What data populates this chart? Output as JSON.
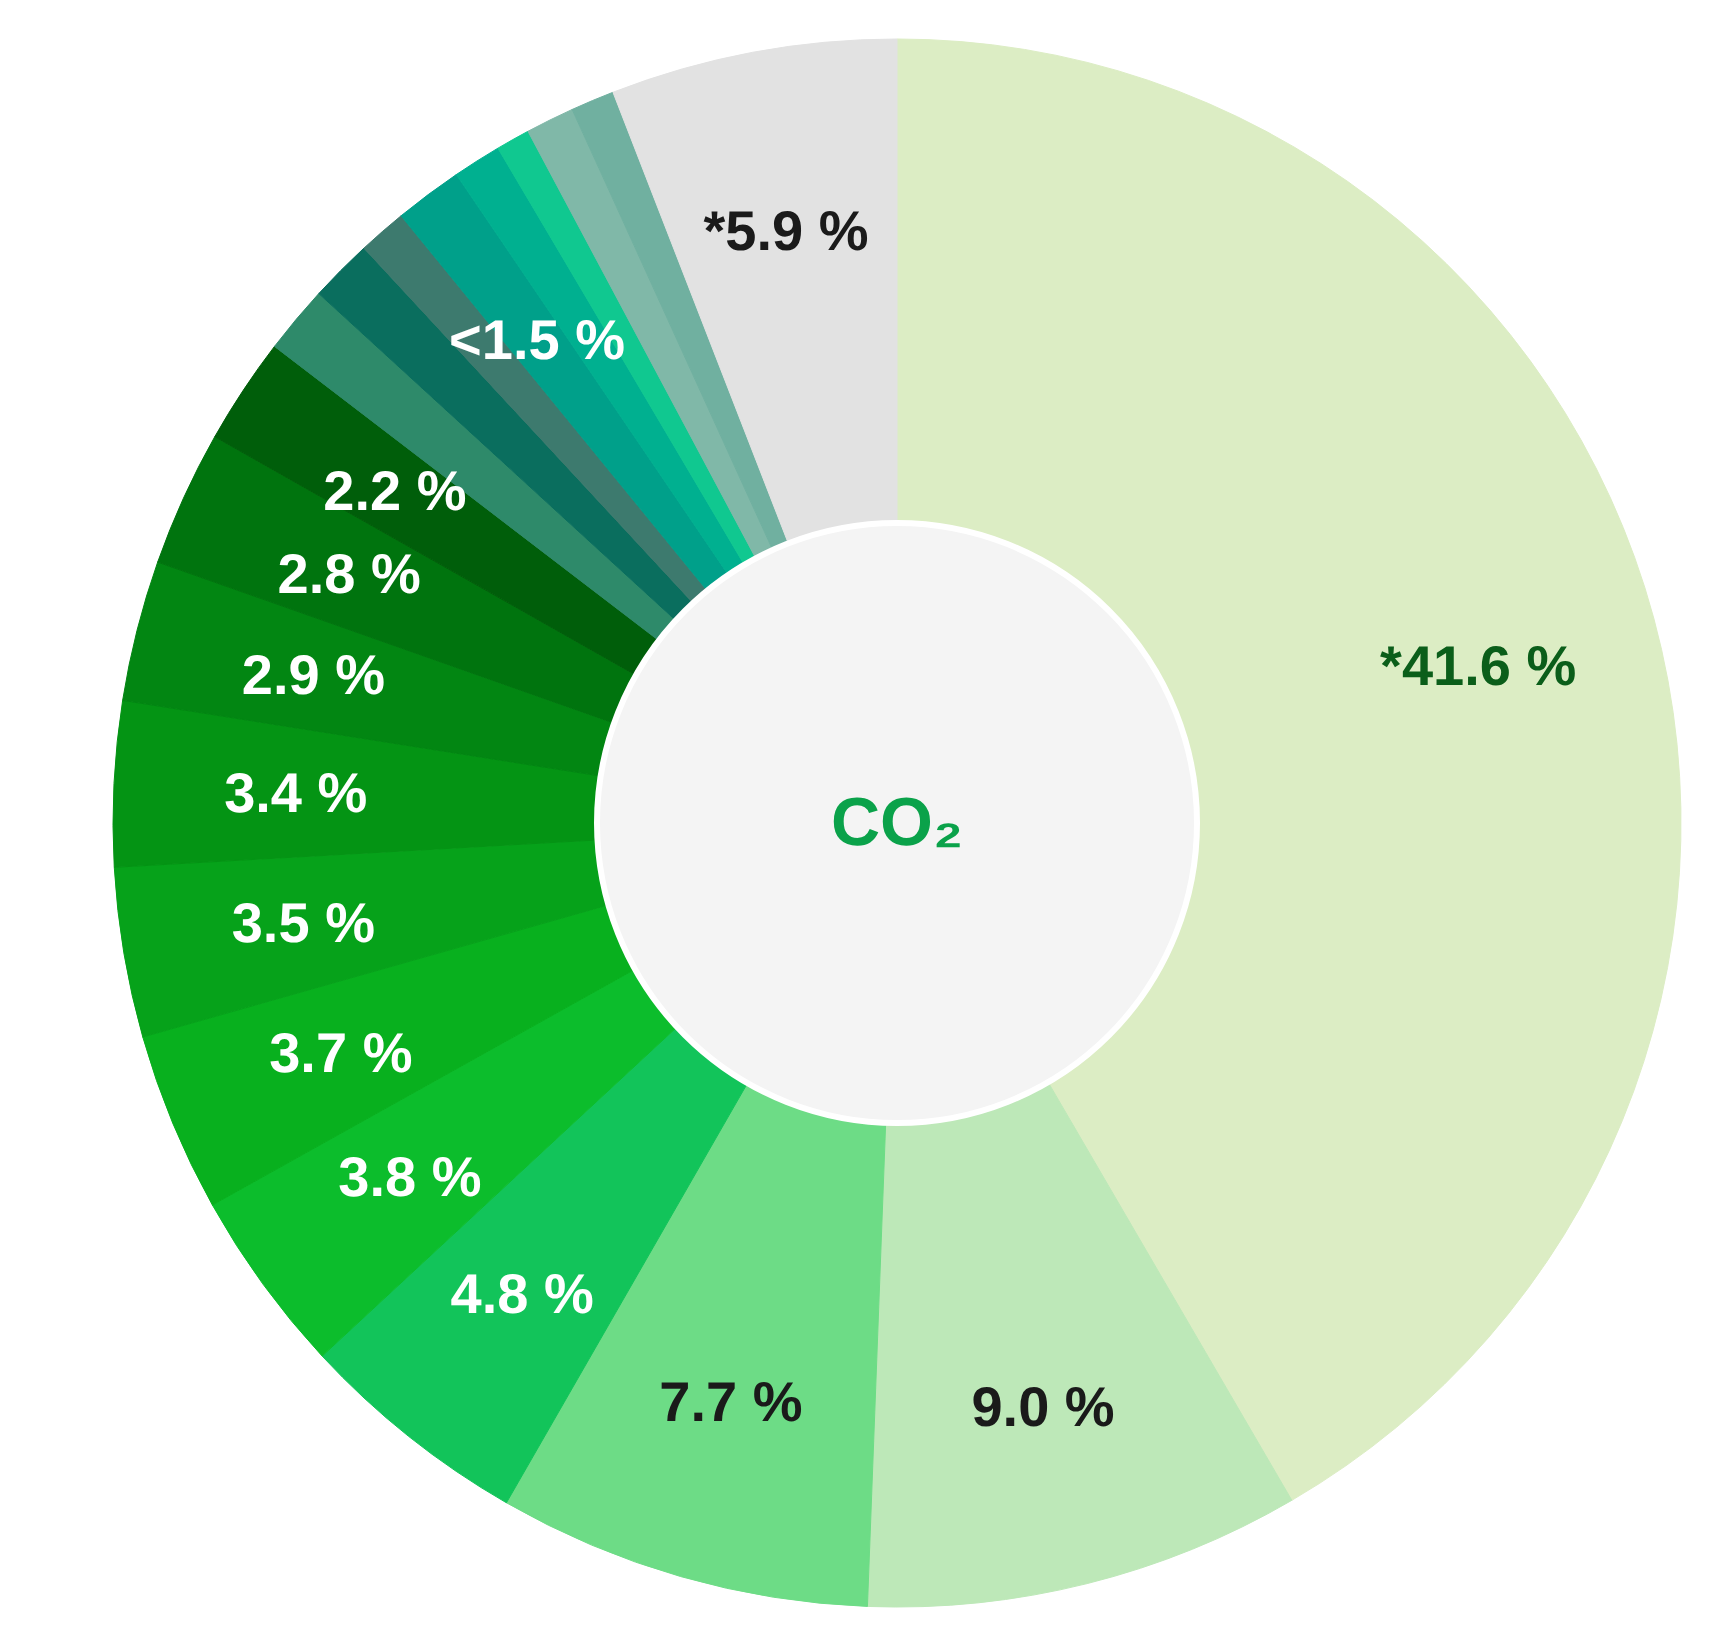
{
  "chart_data": {
    "type": "donut",
    "title": "CO₂",
    "categories": [
      null,
      null,
      null,
      null,
      null,
      null,
      null,
      null,
      null,
      null,
      null,
      null,
      null,
      null,
      null,
      null,
      null,
      null,
      null,
      null
    ],
    "values": [
      41.6,
      9.0,
      7.7,
      4.8,
      3.8,
      3.7,
      3.5,
      3.4,
      2.9,
      2.8,
      2.2,
      1.4,
      1.3,
      1.0,
      1.4,
      1.0,
      0.7,
      1.0,
      0.9,
      5.9
    ],
    "colors": [
      "#dcedc4",
      "#bde8b8",
      "#6ddc86",
      "#12c45a",
      "#0cbd2c",
      "#08b01e",
      "#06a21a",
      "#049414",
      "#028612",
      "#00740e",
      "#005e0a",
      "#2e8a6a",
      "#0a6e5e",
      "#3d7a6e",
      "#00a08a",
      "#00b090",
      "#10c890",
      "#80b8a8",
      "#70b0a0",
      "#e2e2e2"
    ],
    "value_labels": [
      "*41.6 %",
      "9.0 %",
      "7.7 %",
      "4.8 %",
      "3.8 %",
      "3.7 %",
      "3.5 %",
      "3.4 %",
      "2.9 %",
      "2.8 %",
      "2.2 %",
      null,
      null,
      null,
      "<1.5 %",
      null,
      null,
      null,
      null,
      "*5.9 %"
    ]
  }
}
